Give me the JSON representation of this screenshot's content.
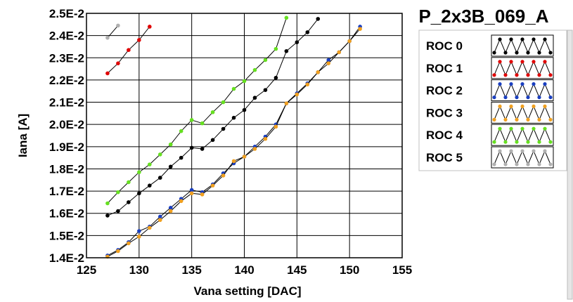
{
  "chart_data": {
    "type": "line",
    "title": "P_2x3B_069_A",
    "xlabel": "Vana setting [DAC]",
    "ylabel": "Iana [A]",
    "xlim": [
      125,
      155
    ],
    "ylim": [
      0.014,
      0.025
    ],
    "x_ticks": [
      "125",
      "130",
      "135",
      "140",
      "145",
      "150",
      "155"
    ],
    "y_ticks": [
      "1.4E-2",
      "1.5E-2",
      "1.6E-2",
      "1.7E-2",
      "1.8E-2",
      "1.9E-2",
      "2.0E-2",
      "2.1E-2",
      "2.2E-2",
      "2.3E-2",
      "2.4E-2",
      "2.5E-2"
    ],
    "grid": true,
    "legend_position": "right",
    "series": [
      {
        "name": "ROC 0",
        "color": "#000000",
        "x": [
          127,
          128,
          129,
          130,
          131,
          132,
          133,
          134,
          135,
          136,
          137,
          138,
          139,
          140,
          141,
          142,
          143,
          144,
          145,
          146,
          147
        ],
        "y": [
          0.0159,
          0.0161,
          0.0165,
          0.0169,
          0.01725,
          0.0176,
          0.0181,
          0.0185,
          0.01895,
          0.0189,
          0.0193,
          0.0198,
          0.0203,
          0.02065,
          0.0212,
          0.02155,
          0.0221,
          0.0233,
          0.0237,
          0.02415,
          0.02475
        ]
      },
      {
        "name": "ROC 1",
        "color": "#e00000",
        "x": [
          127,
          128,
          129,
          130,
          131
        ],
        "y": [
          0.0223,
          0.02275,
          0.02335,
          0.0238,
          0.0244
        ]
      },
      {
        "name": "ROC 2",
        "color": "#1a3fc0",
        "x": [
          127,
          128,
          129,
          130,
          131,
          132,
          133,
          134,
          135,
          136,
          137,
          138,
          139,
          140,
          141,
          142,
          143,
          144,
          145,
          146,
          147,
          148,
          149,
          150,
          151
        ],
        "y": [
          0.0141,
          0.01435,
          0.0147,
          0.0152,
          0.0154,
          0.01585,
          0.01625,
          0.01665,
          0.01705,
          0.01695,
          0.0173,
          0.0178,
          0.01825,
          0.01855,
          0.019,
          0.01945,
          0.02,
          0.02095,
          0.0214,
          0.02185,
          0.02235,
          0.0229,
          0.02325,
          0.02375,
          0.0244
        ]
      },
      {
        "name": "ROC 3",
        "color": "#f0a020",
        "x": [
          127,
          128,
          129,
          130,
          131,
          132,
          133,
          134,
          135,
          136,
          137,
          138,
          139,
          140,
          141,
          142,
          143,
          144,
          145,
          146,
          147,
          148,
          149,
          150,
          151
        ],
        "y": [
          0.01405,
          0.0143,
          0.01465,
          0.01495,
          0.01535,
          0.0157,
          0.0161,
          0.01655,
          0.0169,
          0.01685,
          0.01725,
          0.0177,
          0.01835,
          0.01855,
          0.0189,
          0.01935,
          0.0199,
          0.02095,
          0.02135,
          0.0218,
          0.02235,
          0.02275,
          0.02325,
          0.02375,
          0.0243
        ]
      },
      {
        "name": "ROC 4",
        "color": "#66e020",
        "x": [
          127,
          128,
          129,
          130,
          131,
          132,
          133,
          134,
          135,
          136,
          137,
          138,
          139,
          140,
          141,
          142,
          143,
          144
        ],
        "y": [
          0.01645,
          0.01695,
          0.0174,
          0.01785,
          0.0182,
          0.01865,
          0.0191,
          0.0197,
          0.0202,
          0.02005,
          0.02055,
          0.021,
          0.0216,
          0.02195,
          0.02245,
          0.0229,
          0.0234,
          0.0248
        ]
      },
      {
        "name": "ROC 5",
        "color": "#b0b0b0",
        "x": [
          127,
          128
        ],
        "y": [
          0.0239,
          0.02445
        ]
      }
    ]
  }
}
